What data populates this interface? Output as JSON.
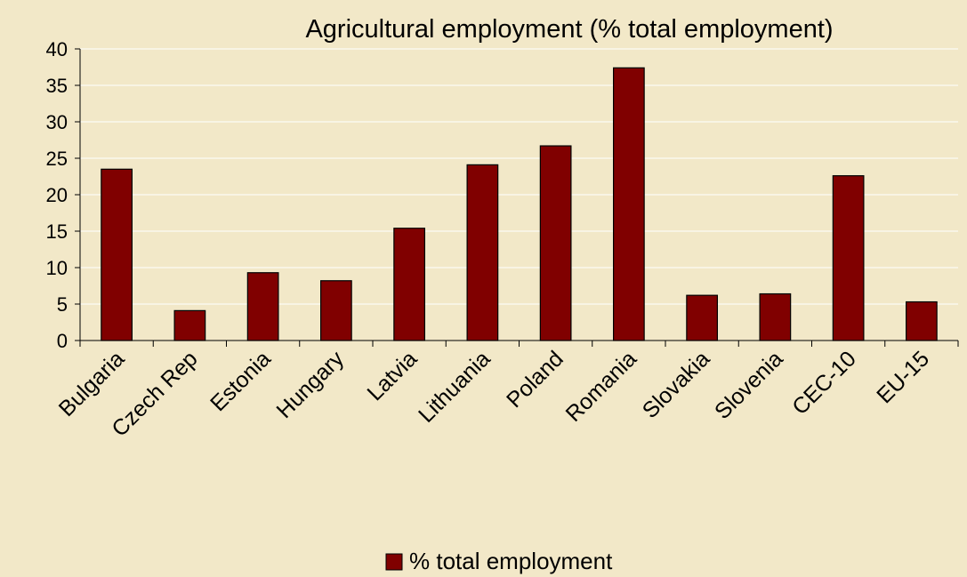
{
  "chart_data": {
    "type": "bar",
    "title": "Agricultural employment (% total employment)",
    "xlabel": "",
    "ylabel": "",
    "categories": [
      "Bulgaria",
      "Czech Rep",
      "Estonia",
      "Hungary",
      "Latvia",
      "Lithuania",
      "Poland",
      "Romania",
      "Slovakia",
      "Slovenia",
      "CEC-10",
      "EU-15"
    ],
    "series": [
      {
        "name": "% total employment",
        "values": [
          23.5,
          4.1,
          9.3,
          8.2,
          15.4,
          24.1,
          26.7,
          37.4,
          6.2,
          6.4,
          22.6,
          5.3
        ],
        "color": "#800000"
      }
    ],
    "ylim": [
      0,
      40
    ],
    "yticks": [
      0,
      5,
      10,
      15,
      20,
      25,
      30,
      35,
      40
    ],
    "grid": true,
    "legend": "bottom",
    "colors": {
      "background": "#f2e8c8",
      "bar": "#800000",
      "gridline": "#ffffff",
      "axis": "#000000"
    }
  }
}
